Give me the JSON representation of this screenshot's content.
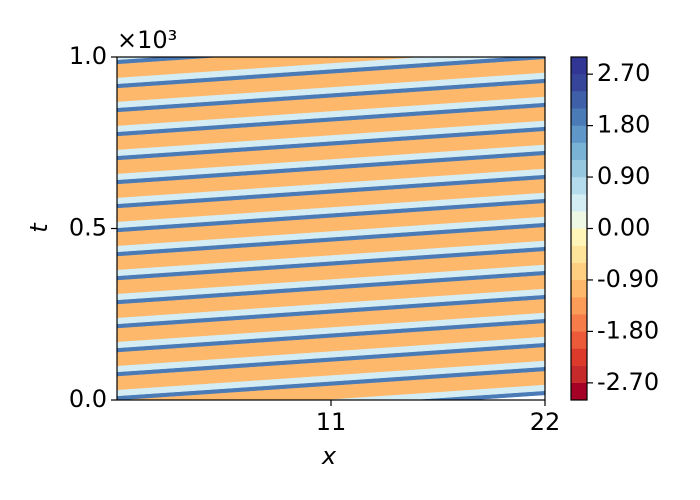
{
  "chart_data": {
    "type": "contour",
    "xlabel": "x",
    "ylabel": "t",
    "y_offset_text": "×10³",
    "xlim": [
      0,
      22
    ],
    "xticks": [
      11,
      22
    ],
    "ylim": [
      0,
      1000
    ],
    "yticks": [
      {
        "value": 0,
        "label": "0.0"
      },
      {
        "value": 500,
        "label": "0.5"
      },
      {
        "value": 1000,
        "label": "1.0"
      }
    ],
    "bands": {
      "values": [
        2.1,
        0.6,
        -0.9,
        2.1,
        0.6,
        -0.9,
        2.1,
        0.6,
        -0.9,
        2.1,
        0.6,
        -0.9,
        2.1,
        0.6,
        -0.9,
        2.1,
        0.6,
        -0.9,
        2.1,
        0.6,
        -0.9,
        2.1,
        0.6,
        -0.9,
        2.1,
        0.6,
        -0.9,
        2.1,
        0.6,
        -0.9,
        2.1,
        0.6,
        -0.9,
        2.1,
        0.6,
        -0.9,
        2.1,
        0.6,
        -0.9,
        2.1,
        0.6,
        -0.9,
        2.1,
        0.6,
        -0.9,
        2.1,
        0.6
      ],
      "t_left": [
        -70,
        -58,
        -40,
        0,
        12,
        30,
        70,
        82,
        100,
        140,
        152,
        170,
        210,
        222,
        240,
        280,
        292,
        310,
        350,
        362,
        380,
        420,
        432,
        450,
        490,
        502,
        520,
        560,
        572,
        590,
        630,
        642,
        660,
        700,
        712,
        730,
        770,
        782,
        800,
        840,
        852,
        870,
        910,
        922,
        940,
        980,
        992
      ],
      "t_right": [
        15,
        27,
        45,
        85,
        97,
        115,
        155,
        167,
        185,
        225,
        237,
        255,
        295,
        307,
        325,
        365,
        377,
        395,
        435,
        447,
        465,
        505,
        517,
        535,
        575,
        587,
        605,
        645,
        657,
        675,
        715,
        727,
        745,
        785,
        797,
        815,
        855,
        867,
        885,
        925,
        937,
        955,
        995,
        1007,
        1025,
        1065,
        1077
      ]
    },
    "colorbar": {
      "levels": [
        -3.0,
        -2.7,
        -2.4,
        -2.1,
        -1.8,
        -1.5,
        -1.2,
        -0.9,
        -0.6,
        -0.3,
        0.0,
        0.3,
        0.6,
        0.9,
        1.2,
        1.5,
        1.8,
        2.1,
        2.4,
        2.7,
        3.0
      ],
      "colors": [
        "#a50026",
        "#c62a2a",
        "#dc3b2c",
        "#ec5a3a",
        "#f67c4a",
        "#fb9c59",
        "#fdb86b",
        "#fecf81",
        "#fee49b",
        "#fff5b8",
        "#eef7e4",
        "#d4edf4",
        "#b5dcec",
        "#96c8e0",
        "#78b2d5",
        "#5e97c8",
        "#4a7bb7",
        "#3f5fa8",
        "#36459a",
        "#313695"
      ],
      "ticks": [
        {
          "value": 2.7,
          "label": "2.70"
        },
        {
          "value": 1.8,
          "label": "1.80"
        },
        {
          "value": 0.9,
          "label": "0.90"
        },
        {
          "value": 0.0,
          "label": "0.00"
        },
        {
          "value": -0.9,
          "label": "-0.90"
        },
        {
          "value": -1.8,
          "label": "-1.80"
        },
        {
          "value": -2.7,
          "label": "-2.70"
        }
      ]
    }
  }
}
